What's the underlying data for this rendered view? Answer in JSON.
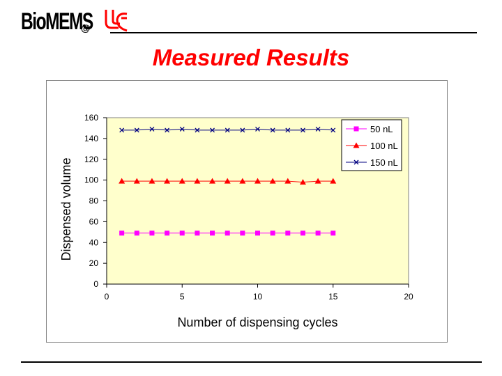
{
  "header": {
    "logo_text": "BioMEMS",
    "logo_at": "@"
  },
  "slide": {
    "title": "Measured Results"
  },
  "colors": {
    "title": "#ff0000",
    "plot_background": "#ffffcc",
    "series_50": "#ff00ff",
    "series_100": "#ff0000",
    "series_150": "#000080",
    "logo_mark": "#ff0000"
  },
  "chart_data": {
    "type": "line",
    "title": "",
    "xlabel": "Number of dispensing cycles",
    "ylabel": "Dispensed volume",
    "xlim": [
      0,
      20
    ],
    "ylim": [
      0,
      160
    ],
    "x_ticks": [
      0,
      5,
      10,
      15,
      20
    ],
    "y_ticks": [
      0,
      20,
      40,
      60,
      80,
      100,
      120,
      140,
      160
    ],
    "grid": false,
    "legend_position": "top-right",
    "x": [
      1,
      2,
      3,
      4,
      5,
      6,
      7,
      8,
      9,
      10,
      11,
      12,
      13,
      14,
      15
    ],
    "series": [
      {
        "name": "50 nL",
        "marker": "square",
        "color": "#ff00ff",
        "values": [
          49,
          49,
          49,
          49,
          49,
          49,
          49,
          49,
          49,
          49,
          49,
          49,
          49,
          49,
          49
        ]
      },
      {
        "name": "100 nL",
        "marker": "triangle",
        "color": "#ff0000",
        "values": [
          99,
          99,
          99,
          99,
          99,
          99,
          99,
          99,
          99,
          99,
          99,
          99,
          98,
          99,
          99
        ]
      },
      {
        "name": "150 nL",
        "marker": "x",
        "color": "#000080",
        "values": [
          148,
          148,
          149,
          148,
          149,
          148,
          148,
          148,
          148,
          149,
          148,
          148,
          148,
          149,
          148
        ]
      }
    ]
  }
}
